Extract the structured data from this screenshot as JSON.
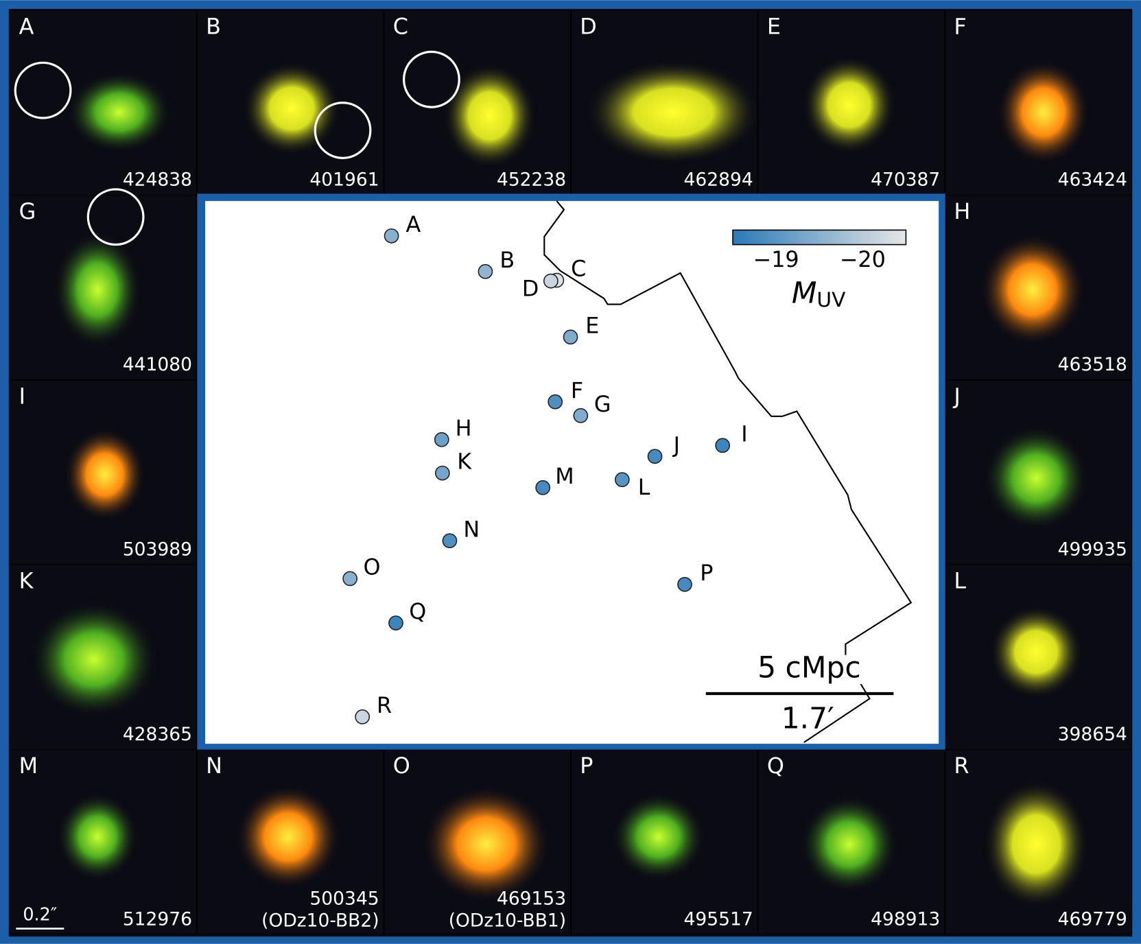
{
  "tiles": [
    {
      "letter": "A",
      "id": "424838"
    },
    {
      "letter": "B",
      "id": "401961"
    },
    {
      "letter": "C",
      "id": "452238"
    },
    {
      "letter": "D",
      "id": "462894"
    },
    {
      "letter": "E",
      "id": "470387"
    },
    {
      "letter": "F",
      "id": "463424"
    },
    {
      "letter": "G",
      "id": "441080"
    },
    {
      "letter": "H",
      "id": "463518"
    },
    {
      "letter": "I",
      "id": "503989"
    },
    {
      "letter": "J",
      "id": "499935"
    },
    {
      "letter": "K",
      "id": "428365"
    },
    {
      "letter": "L",
      "id": "398654"
    },
    {
      "letter": "M",
      "id": "512976"
    },
    {
      "letter": "N",
      "id": "500345",
      "note": "(ODz10-BB2)"
    },
    {
      "letter": "O",
      "id": "469153",
      "note": "(ODz10-BB1)"
    },
    {
      "letter": "P",
      "id": "495517"
    },
    {
      "letter": "Q",
      "id": "498913"
    },
    {
      "letter": "R",
      "id": "469779"
    }
  ],
  "tile_scale": "0.2″",
  "map": {
    "points": [
      {
        "label": "A",
        "m_uv": -19.5
      },
      {
        "label": "B",
        "m_uv": -19.6
      },
      {
        "label": "C",
        "m_uv": -20.4
      },
      {
        "label": "D",
        "m_uv": -20.2
      },
      {
        "label": "E",
        "m_uv": -19.4
      },
      {
        "label": "F",
        "m_uv": -18.9
      },
      {
        "label": "G",
        "m_uv": -19.4
      },
      {
        "label": "H",
        "m_uv": -19.2
      },
      {
        "label": "I",
        "m_uv": -18.7
      },
      {
        "label": "J",
        "m_uv": -18.8
      },
      {
        "label": "K",
        "m_uv": -19.3
      },
      {
        "label": "L",
        "m_uv": -19.0
      },
      {
        "label": "M",
        "m_uv": -18.8
      },
      {
        "label": "N",
        "m_uv": -18.9
      },
      {
        "label": "O",
        "m_uv": -19.5
      },
      {
        "label": "P",
        "m_uv": -18.8
      },
      {
        "label": "Q",
        "m_uv": -18.7
      },
      {
        "label": "R",
        "m_uv": -20.2
      }
    ],
    "colorbar": {
      "label": "M",
      "label_sub": "UV",
      "lim": [
        -18.5,
        -20.5
      ],
      "ticks": [
        {
          "value": -19,
          "label": "−19"
        },
        {
          "value": -20,
          "label": "−20"
        }
      ]
    },
    "scale_bar": {
      "length": "5 cMpc",
      "angle": "1.7′"
    }
  }
}
